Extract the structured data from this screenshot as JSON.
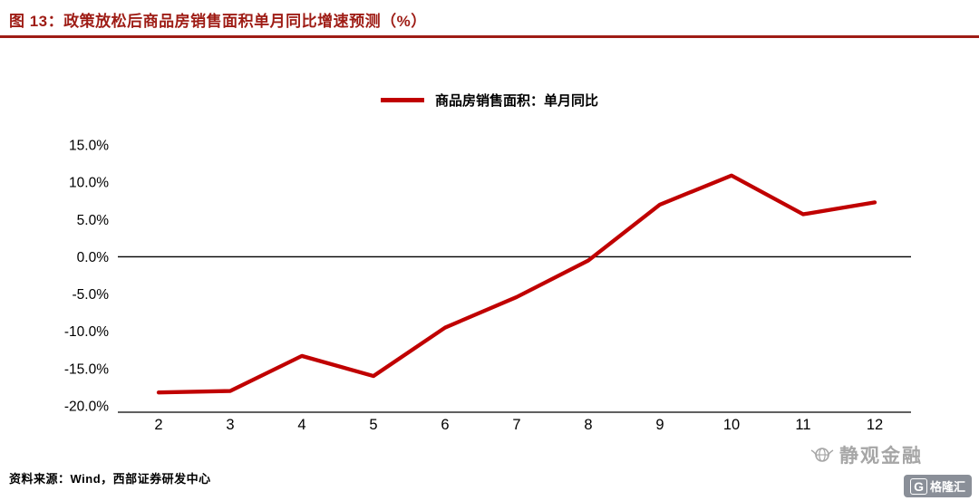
{
  "header": {
    "title": "图 13：政策放松后商品房销售面积单月同比增速预测（%）"
  },
  "legend": {
    "label": "商品房销售面积：单月同比"
  },
  "footer": {
    "source": "资料来源：Wind，西部证券研发中心"
  },
  "watermark": {
    "text": "静观金融",
    "logo_g": "G",
    "logo_text": "格隆汇"
  },
  "colors": {
    "accent": "#c00000",
    "title_red": "#9e1c15",
    "axis_black": "#000000",
    "watermark_gray": "#a6a6a6"
  },
  "chart_data": {
    "type": "line",
    "title": "图 13：政策放松后商品房销售面积单月同比增速预测（%）",
    "x": [
      2,
      3,
      4,
      5,
      6,
      7,
      8,
      9,
      10,
      11,
      12
    ],
    "series": [
      {
        "name": "商品房销售面积：单月同比",
        "values": [
          -18.2,
          -18.0,
          -13.3,
          -16.0,
          -9.5,
          -5.4,
          -0.5,
          7.0,
          10.9,
          5.7,
          7.3
        ]
      }
    ],
    "ylim": [
      -20,
      15
    ],
    "yticks": [
      15,
      10,
      5,
      0,
      -5,
      -10,
      -15,
      -20
    ],
    "ytick_suffix": "%",
    "xlabel": "",
    "ylabel": "",
    "grid": false,
    "legend_position": "top-center",
    "line_color": "#c00000"
  }
}
